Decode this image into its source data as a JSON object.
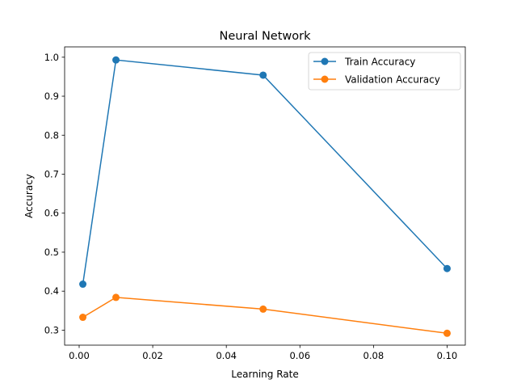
{
  "chart_data": {
    "type": "line",
    "title": "Neural Network",
    "xlabel": "Learning Rate",
    "ylabel": "Accuracy",
    "x": [
      0.001,
      0.01,
      0.05,
      0.1
    ],
    "xlim": [
      -0.00395,
      0.10495
    ],
    "ylim": [
      0.2615,
      1.0265
    ],
    "xticks": [
      0.0,
      0.02,
      0.04,
      0.06,
      0.08,
      0.1
    ],
    "xtick_labels": [
      "0.00",
      "0.02",
      "0.04",
      "0.06",
      "0.08",
      "0.10"
    ],
    "yticks": [
      0.3,
      0.4,
      0.5,
      0.6,
      0.7,
      0.8,
      0.9,
      1.0
    ],
    "ytick_labels": [
      "0.3",
      "0.4",
      "0.5",
      "0.6",
      "0.7",
      "0.8",
      "0.9",
      "1.0"
    ],
    "grid": false,
    "legend_position": "top-right",
    "series": [
      {
        "name": "Train Accuracy",
        "color": "#1f77b4",
        "values": [
          0.418,
          0.993,
          0.954,
          0.458
        ]
      },
      {
        "name": "Validation Accuracy",
        "color": "#ff7f0e",
        "values": [
          0.333,
          0.384,
          0.354,
          0.292
        ]
      }
    ]
  }
}
